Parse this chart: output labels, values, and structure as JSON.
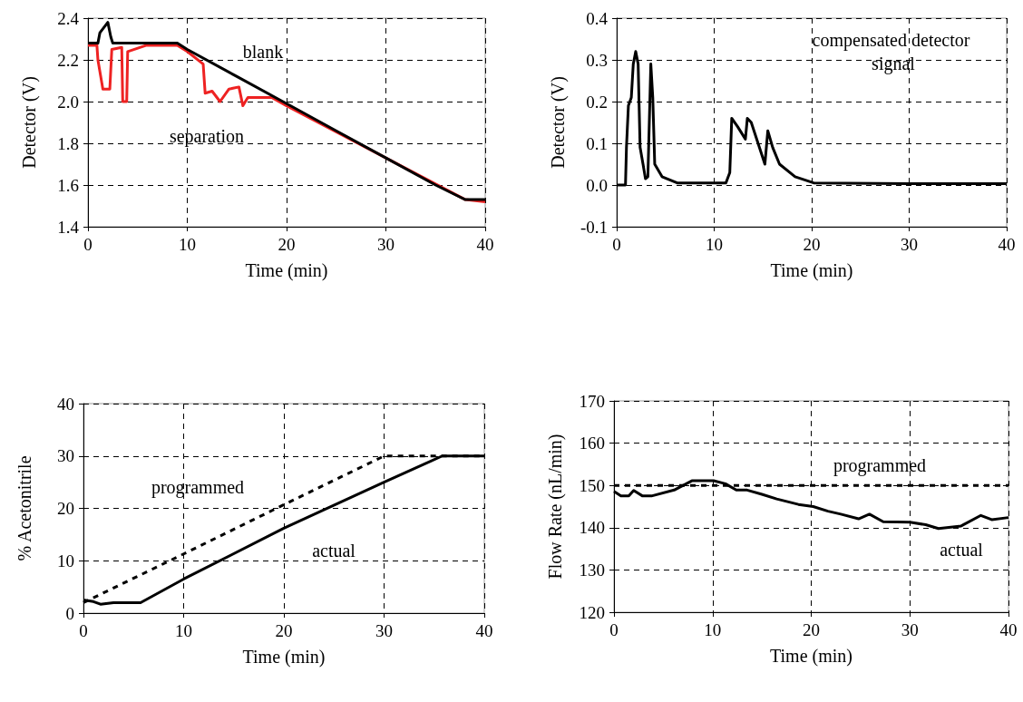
{
  "chart_data": [
    {
      "type": "line",
      "xlabel": "Time (min)",
      "ylabel": "Detector (V)",
      "xlim": [
        0,
        40
      ],
      "xticks": [
        0,
        10,
        20,
        30,
        40
      ],
      "ylim": [
        1.4,
        2.4
      ],
      "yticks": [
        1.4,
        1.6,
        1.8,
        {
          "value": 2,
          "label": "2.0"
        },
        2.2,
        2.4
      ],
      "grid": true,
      "marker": "none",
      "line_style": "solid",
      "series": [
        {
          "name": "separation",
          "color": "#ee2222",
          "x": [
            0,
            0.9,
            1.0,
            1.5,
            2.2,
            2.4,
            3.4,
            3.5,
            3.9,
            4.0,
            5.9,
            9,
            10,
            11.6,
            11.8,
            12.5,
            13.3,
            14.2,
            15.2,
            15.6,
            16.1,
            17.5,
            18.5,
            20,
            30,
            38,
            40
          ],
          "values": [
            2.27,
            2.27,
            2.2,
            2.06,
            2.06,
            2.25,
            2.26,
            2.0,
            2.0,
            2.24,
            2.27,
            2.27,
            2.24,
            2.18,
            2.04,
            2.05,
            2.0,
            2.06,
            2.07,
            1.98,
            2.02,
            2.02,
            2.02,
            1.98,
            1.73,
            1.53,
            1.52
          ]
        },
        {
          "name": "blank",
          "color": "#000000",
          "x": [
            0,
            1,
            1.2,
            2.0,
            2.3,
            2.5,
            9,
            10,
            15,
            20,
            25,
            30,
            35,
            38,
            40
          ],
          "values": [
            2.28,
            2.28,
            2.33,
            2.38,
            2.31,
            2.28,
            2.28,
            2.25,
            2.12,
            1.99,
            1.86,
            1.73,
            1.6,
            1.53,
            1.53
          ]
        }
      ]
    },
    {
      "type": "line",
      "xlabel": "Time (min)",
      "ylabel": "Detector (V)",
      "xlim": [
        0,
        40
      ],
      "xticks": [
        0,
        10,
        20,
        30,
        40
      ],
      "ylim": [
        -0.1,
        0.4
      ],
      "yticks": [
        -0.1,
        {
          "value": 0,
          "label": "0.0"
        },
        0.1,
        0.2,
        0.3,
        0.4
      ],
      "grid": true,
      "marker": "none",
      "line_style": "solid",
      "series": [
        {
          "name": "compensated detector signal",
          "color": "#000000",
          "x": [
            0,
            0.9,
            1.0,
            1.2,
            1.5,
            1.7,
            1.95,
            2.2,
            2.4,
            2.7,
            2.95,
            3.2,
            3.5,
            3.7,
            3.9,
            4.65,
            6.2,
            11.2,
            11.6,
            11.8,
            12.4,
            13.2,
            13.4,
            13.8,
            15.2,
            15.5,
            16.0,
            16.7,
            18.3,
            20.2,
            30,
            40
          ],
          "values": [
            0,
            0,
            0.09,
            0.19,
            0.21,
            0.29,
            0.32,
            0.29,
            0.09,
            0.05,
            0.015,
            0.02,
            0.29,
            0.21,
            0.05,
            0.02,
            0.005,
            0.005,
            0.03,
            0.16,
            0.14,
            0.11,
            0.16,
            0.15,
            0.05,
            0.13,
            0.09,
            0.05,
            0.02,
            0.005,
            0.003,
            0.003
          ]
        }
      ]
    },
    {
      "type": "line",
      "xlabel": "Time (min)",
      "ylabel": "% Acetonitrile",
      "xlim": [
        0,
        40
      ],
      "xticks": [
        0,
        10,
        20,
        30,
        40
      ],
      "ylim": [
        0,
        40
      ],
      "yticks": [
        0,
        10,
        20,
        30,
        40
      ],
      "grid": true,
      "marker": "none",
      "line_style": "solid",
      "series": [
        {
          "name": "programmed",
          "color": "#000000",
          "line_style": "dashed",
          "x": [
            0,
            10,
            20,
            30,
            40
          ],
          "values": [
            2,
            11.3,
            20.7,
            30,
            30
          ]
        },
        {
          "name": "actual",
          "color": "#000000",
          "x": [
            0,
            1,
            1.7,
            3,
            5.7,
            10,
            20,
            30,
            35.8,
            40
          ],
          "values": [
            2.5,
            2.2,
            1.7,
            2,
            2,
            6.5,
            16.2,
            25,
            30,
            30
          ]
        }
      ]
    },
    {
      "type": "line",
      "xlabel": "Time (min)",
      "ylabel": "Flow Rate (nL/min)",
      "xlim": [
        0,
        40
      ],
      "xticks": [
        0,
        10,
        20,
        30,
        40
      ],
      "ylim": [
        120,
        170
      ],
      "yticks": [
        120,
        130,
        140,
        150,
        160,
        170
      ],
      "grid": true,
      "marker": "none",
      "line_style": "solid",
      "series": [
        {
          "name": "programmed",
          "color": "#000000",
          "line_style": "dashed",
          "x": [
            0,
            40
          ],
          "values": [
            150,
            150
          ]
        },
        {
          "name": "actual",
          "color": "#000000",
          "x": [
            0,
            0.7,
            1.5,
            2.0,
            2.9,
            3.8,
            6.1,
            7.9,
            10.1,
            11.3,
            12.4,
            13.5,
            15.0,
            16.5,
            18.7,
            20.2,
            21.7,
            23.0,
            24.8,
            25.9,
            27.3,
            30.0,
            31.6,
            32.9,
            35.2,
            37.2,
            38.3,
            40
          ],
          "values": [
            148.6,
            147.5,
            147.5,
            148.8,
            147.5,
            147.5,
            148.9,
            151.1,
            151.1,
            150.4,
            148.9,
            148.9,
            147.9,
            146.8,
            145.5,
            145,
            143.9,
            143.2,
            142.1,
            143.2,
            141.4,
            141.3,
            140.7,
            139.8,
            140.4,
            142.9,
            141.9,
            142.4
          ]
        }
      ]
    }
  ]
}
